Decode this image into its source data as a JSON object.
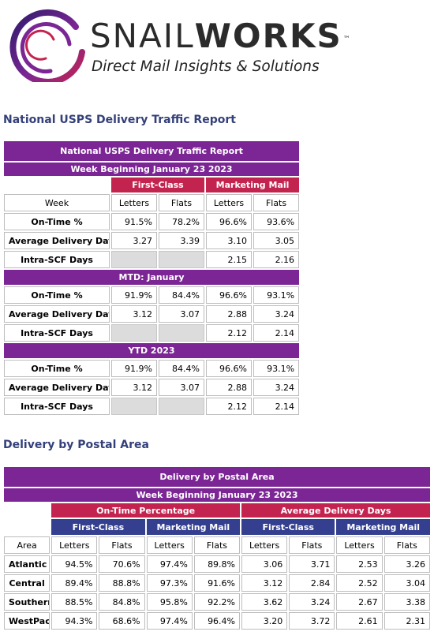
{
  "logo": {
    "wordmark_thin": "SNAIL",
    "wordmark_bold": "WORKS",
    "trademark": "™",
    "tagline": "Direct Mail Insights & Solutions",
    "colors": {
      "swirl_dark": "#2f1b6b",
      "swirl_mid": "#7b2694",
      "swirl_light": "#c3244f"
    }
  },
  "colors": {
    "purple": "#7b2694",
    "crimson": "#c3244f",
    "navy": "#34408f",
    "heading": "#34407a"
  },
  "section1": {
    "heading": "National USPS Delivery Traffic Report",
    "table": {
      "title": "National USPS Delivery Traffic Report",
      "subtitle": "Week Beginning January 23 2023",
      "group_first_class": "First-Class",
      "group_marketing": "Marketing Mail",
      "col_week": "Week",
      "col_letters": "Letters",
      "col_flats": "Flats",
      "col_letters2": "Letters",
      "col_flats2": "Flats",
      "week_rows": [
        {
          "label": "On-Time %",
          "fc_letters": "91.5%",
          "fc_flats": "78.2%",
          "mm_letters": "96.6%",
          "mm_flats": "93.6%"
        },
        {
          "label": "Average Delivery Days",
          "fc_letters": "3.27",
          "fc_flats": "3.39",
          "mm_letters": "3.10",
          "mm_flats": "3.05"
        },
        {
          "label": "Intra-SCF Days",
          "fc_letters": "",
          "fc_flats": "",
          "mm_letters": "2.15",
          "mm_flats": "2.16"
        }
      ],
      "mtd_label": "MTD: January",
      "mtd_rows": [
        {
          "label": "On-Time %",
          "fc_letters": "91.9%",
          "fc_flats": "84.4%",
          "mm_letters": "96.6%",
          "mm_flats": "93.1%"
        },
        {
          "label": "Average Delivery Days",
          "fc_letters": "3.12",
          "fc_flats": "3.07",
          "mm_letters": "2.88",
          "mm_flats": "3.24"
        },
        {
          "label": "Intra-SCF Days",
          "fc_letters": "",
          "fc_flats": "",
          "mm_letters": "2.12",
          "mm_flats": "2.14"
        }
      ],
      "ytd_label": "YTD 2023",
      "ytd_rows": [
        {
          "label": "On-Time %",
          "fc_letters": "91.9%",
          "fc_flats": "84.4%",
          "mm_letters": "96.6%",
          "mm_flats": "93.1%"
        },
        {
          "label": "Average Delivery Days",
          "fc_letters": "3.12",
          "fc_flats": "3.07",
          "mm_letters": "2.88",
          "mm_flats": "3.24"
        },
        {
          "label": "Intra-SCF Days",
          "fc_letters": "",
          "fc_flats": "",
          "mm_letters": "2.12",
          "mm_flats": "2.14"
        }
      ]
    }
  },
  "section2": {
    "heading": "Delivery by Postal Area",
    "table": {
      "title": "Delivery by Postal Area",
      "subtitle": "Week Beginning January 23 2023",
      "group_ontime": "On-Time Percentage",
      "group_avg_days": "Average Delivery Days",
      "sub_first_class": "First-Class",
      "sub_marketing": "Marketing Mail",
      "sub_first_class2": "First-Class",
      "sub_marketing2": "Marketing Mail",
      "col_area": "Area",
      "col_letters": "Letters",
      "col_flats": "Flats",
      "rows": [
        {
          "area": "Atlantic",
          "ot_fc_letters": "94.5%",
          "ot_fc_flats": "70.6%",
          "ot_mm_letters": "97.4%",
          "ot_mm_flats": "89.8%",
          "ad_fc_letters": "3.06",
          "ad_fc_flats": "3.71",
          "ad_mm_letters": "2.53",
          "ad_mm_flats": "3.26"
        },
        {
          "area": "Central",
          "ot_fc_letters": "89.4%",
          "ot_fc_flats": "88.8%",
          "ot_mm_letters": "97.3%",
          "ot_mm_flats": "91.6%",
          "ad_fc_letters": "3.12",
          "ad_fc_flats": "2.84",
          "ad_mm_letters": "2.52",
          "ad_mm_flats": "3.04"
        },
        {
          "area": "Southern",
          "ot_fc_letters": "88.5%",
          "ot_fc_flats": "84.8%",
          "ot_mm_letters": "95.8%",
          "ot_mm_flats": "92.2%",
          "ad_fc_letters": "3.62",
          "ad_fc_flats": "3.24",
          "ad_mm_letters": "2.67",
          "ad_mm_flats": "3.38"
        },
        {
          "area": "WestPac",
          "ot_fc_letters": "94.3%",
          "ot_fc_flats": "68.6%",
          "ot_mm_letters": "97.4%",
          "ot_mm_flats": "96.4%",
          "ad_fc_letters": "3.20",
          "ad_fc_flats": "3.72",
          "ad_mm_letters": "2.61",
          "ad_mm_flats": "2.31"
        }
      ]
    }
  }
}
